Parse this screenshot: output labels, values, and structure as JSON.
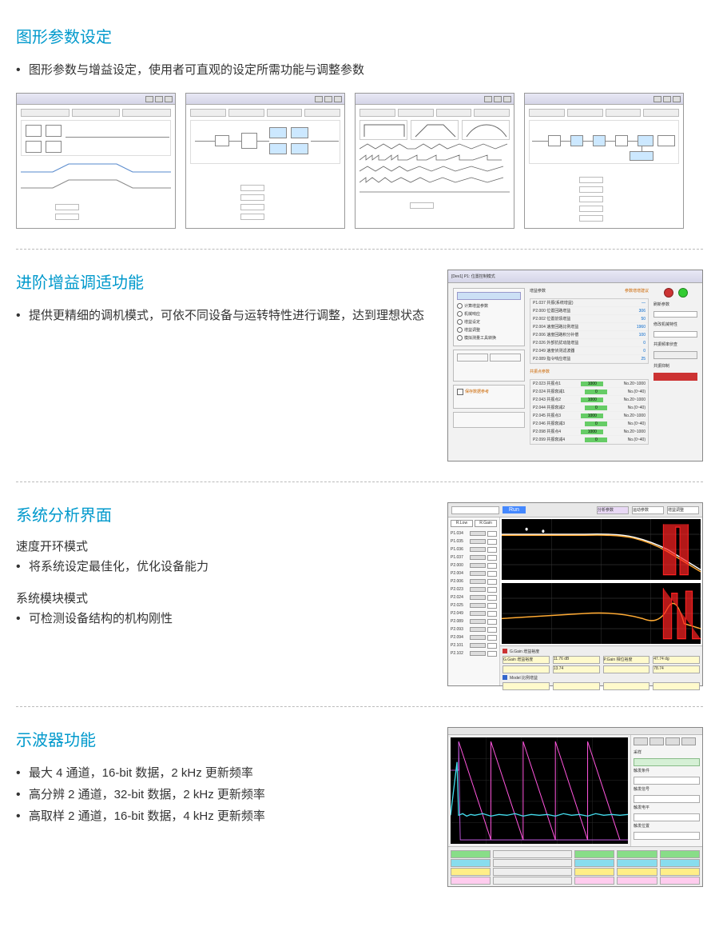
{
  "section1": {
    "title": "图形参数设定",
    "bullets": [
      "图形参数与增益设定，使用者可直观的设定所需功能与调整参数"
    ],
    "windows": [
      {
        "tabs": 3,
        "has_block_diagram": true,
        "has_waves": true,
        "params": 2
      },
      {
        "tabs": 4,
        "has_block_diagram": true,
        "has_waves": false,
        "params": 4
      },
      {
        "tabs": 4,
        "has_block_diagram": false,
        "has_waves": true,
        "wave_rows": 6,
        "params": 2
      },
      {
        "tabs": 4,
        "has_block_diagram": true,
        "has_waves": false,
        "params": 5
      }
    ]
  },
  "section2": {
    "title": "进阶增益调适功能",
    "bullets": [
      "提供更精细的调机模式，可依不同设备与运转特性进行调整，达到理想状态"
    ],
    "dialog": {
      "title": "[Dev1] P1: 位置控制模式",
      "radio_options": [
        "计算增益参数",
        "机械响应",
        "增益设定",
        "增益调整",
        "模拟测量工具转换"
      ],
      "param_rows": [
        {
          "label": "P1.037 共振(系统增益)",
          "value": "—",
          "type": "blue"
        },
        {
          "label": "P2.000 位置回路增益",
          "value": "306",
          "type": "blue"
        },
        {
          "label": "P2.002 位置前馈增益",
          "value": "50",
          "type": "blue"
        },
        {
          "label": "P2.004 速度回路比例增益",
          "value": "1960",
          "type": "blue"
        },
        {
          "label": "P2.006 速度回路积分补偿",
          "value": "100",
          "type": "blue"
        },
        {
          "label": "P2.026 外部抗扰动能增益",
          "value": "0",
          "type": "blue"
        },
        {
          "label": "P2.049 速度侦测滤波器",
          "value": "0",
          "type": "blue"
        },
        {
          "label": "P2.089 指令响应增益",
          "value": "25",
          "type": "blue"
        }
      ],
      "param_rows2": [
        {
          "label": "P2.023 共振点1",
          "value": "1000",
          "range": "No.20~1000"
        },
        {
          "label": "P2.024 共振衰减1",
          "value": "0",
          "range": "No.(0~40)"
        },
        {
          "label": "P2.043 共振点2",
          "value": "1000",
          "range": "No.20~1000"
        },
        {
          "label": "P2.044 共振衰减2",
          "value": "0",
          "range": "No.(0~40)"
        },
        {
          "label": "P2.045 共振点3",
          "value": "1000",
          "range": "No.20~1000"
        },
        {
          "label": "P2.046 共振衰减3",
          "value": "0",
          "range": "No.(0~40)"
        },
        {
          "label": "P2.098 共振点4",
          "value": "1000",
          "range": "No.20~1000"
        },
        {
          "label": "P2.099 共振衰减4",
          "value": "0",
          "range": "No.(0~40)"
        }
      ],
      "header_right": "参数增增建议",
      "right_labels": [
        "刷新参数",
        "修改机械特性",
        "共振频率侦查",
        "共振抑制"
      ]
    }
  },
  "section3": {
    "title": "系统分析界面",
    "sub1": "速度开环模式",
    "bullets1": [
      "将系统设定最佳化，优化设备能力"
    ],
    "sub2": "系统模块模式",
    "bullets2": [
      "可检测设备结构的机构刚性"
    ],
    "bode": {
      "run_label": "Run",
      "tabs": [
        "分析参数",
        "运动参数",
        "增益调整"
      ],
      "param_labels": [
        "P1.034",
        "P1.035",
        "P1.036",
        "P1.037",
        "P2.000",
        "P2.004",
        "P2.006",
        "P2.023",
        "P2.024",
        "P2.025",
        "P2.049",
        "P2.089",
        "P2.093",
        "P2.094",
        "P2.101",
        "P2.102"
      ],
      "plot1": {
        "bg": "#000000",
        "curve_color_main": "#ffaa33",
        "curve_color_red": "#ff2222",
        "curve_color_white": "#ffffff",
        "xaxis_log": true,
        "xlim": [
          1,
          1000
        ],
        "ylim": [
          0,
          60
        ]
      },
      "plot2": {
        "bg": "#000000",
        "curve_color_main": "#ffaa33",
        "curve_color_red": "#ff2222",
        "ylim": [
          -180,
          180
        ]
      },
      "controls": {
        "row1": [
          "G.Gain 增益裕度",
          "11.76 dB",
          "P.Gain 相位裕度",
          "47.74 dg"
        ],
        "row2": [
          "Model 比例增益",
          "",
          "Model 比例增益",
          ""
        ],
        "row3": [
          "增益(传频率)",
          "13.74",
          "相位(传频率)",
          "78.74"
        ],
        "row4": [
          "增加(相频率)",
          "",
          "",
          ""
        ]
      }
    }
  },
  "section4": {
    "title": "示波器功能",
    "bullets": [
      "最大 4 通道，16-bit 数据，2 kHz 更新频率",
      "高分辨 2 通道，32-bit 数据，2 kHz 更新频率",
      "高取样 2 通道，16-bit 数据，4 kHz 更新频率"
    ],
    "scope": {
      "plot": {
        "bg": "#000000",
        "grid_color": "#333333",
        "curve1_color": "#44ddee",
        "curve2_color": "#ff55dd",
        "curve3_color": "#dd66ff"
      },
      "side_labels": [
        "采样",
        "触发条件",
        "触发信号",
        "触发电平",
        "触发位置"
      ],
      "channel_colors": [
        "#88dd88",
        "#88ddee",
        "#ffee88",
        "#ffaaff"
      ]
    }
  },
  "colors": {
    "title": "#0099cc",
    "text": "#333333",
    "divider": "#bbbbbb",
    "window_border": "#999999",
    "window_bg": "#f5f5f5"
  }
}
